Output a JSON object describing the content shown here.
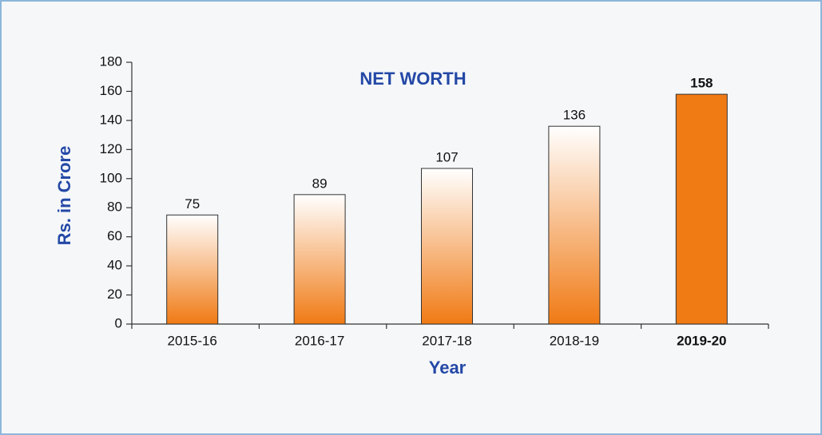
{
  "chart_data": {
    "type": "bar",
    "title": "NET WORTH",
    "x_label": "Year",
    "y_label": "Rs. in Crore",
    "categories": [
      "2015-16",
      "2016-17",
      "2017-18",
      "2018-19",
      "2019-20"
    ],
    "values": [
      75,
      89,
      107,
      136,
      158
    ],
    "color": "#f07a14",
    "bar_styles": [
      "gradient",
      "gradient",
      "gradient",
      "gradient",
      "solid"
    ],
    "ylim": [
      0,
      180
    ],
    "yticks": [
      0,
      20,
      40,
      60,
      80,
      100,
      120,
      140,
      160,
      180
    ],
    "grid": false
  }
}
